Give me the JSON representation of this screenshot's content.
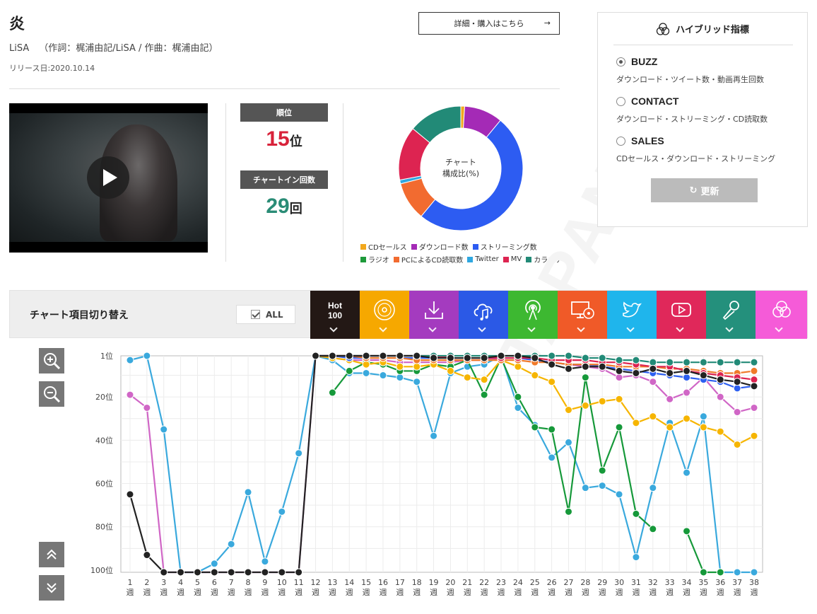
{
  "song": {
    "title": "炎",
    "artist": "LiSA",
    "credits": "（作詞：梶浦由記/LiSA / 作曲：梶浦由記）",
    "release": "リリース日:2020.10.14",
    "detail_button": "詳細・購入はこちら",
    "detail_arrow": "→"
  },
  "stats": {
    "rank_label": "順位",
    "rank_value": "15",
    "rank_unit": "位",
    "chartin_label": "チャートイン回数",
    "chartin_value": "29",
    "chartin_unit": "回"
  },
  "composition": {
    "center_line1": "チャート",
    "center_line2": "構成比(%)",
    "slices": [
      {
        "name": "CDセールス",
        "color": "#f2a81d",
        "percent": 1
      },
      {
        "name": "ダウンロード数",
        "color": "#a42ab6",
        "percent": 10
      },
      {
        "name": "ストリーミング数",
        "color": "#2d5cf2",
        "percent": 50
      },
      {
        "name": "ラジオ",
        "color": "#1e9a3a",
        "percent": 0
      },
      {
        "name": "PCによるCD読取数",
        "color": "#f26b30",
        "percent": 10
      },
      {
        "name": "Twitter",
        "color": "#2fa7e0",
        "percent": 1
      },
      {
        "name": "MV",
        "color": "#dd2451",
        "percent": 14
      },
      {
        "name": "カラオケ",
        "color": "#228a77",
        "percent": 14
      }
    ]
  },
  "hybrid": {
    "title": "ハイブリッド指標",
    "options": [
      {
        "label": "BUZZ",
        "desc": "ダウンロード・ツイート数・動画再生回数",
        "selected": true
      },
      {
        "label": "CONTACT",
        "desc": "ダウンロード・ストリーミング・CD読取数",
        "selected": false
      },
      {
        "label": "SALES",
        "desc": "CDセールス・ダウンロード・ストリーミング",
        "selected": false
      }
    ],
    "refresh_label": "更新",
    "refresh_icon": "↻"
  },
  "toolbar": {
    "title": "チャート項目切り替え",
    "all_label": "ALL",
    "tabs": [
      {
        "name": "hot100",
        "line1": "Hot",
        "line2": "100",
        "color": "#231815"
      },
      {
        "name": "cd-sales",
        "icon": "disc-icon",
        "color": "#f6a800"
      },
      {
        "name": "download",
        "icon": "download-icon",
        "color": "#a43bbf"
      },
      {
        "name": "streaming",
        "icon": "cloud-music-icon",
        "color": "#2b59e6"
      },
      {
        "name": "radio",
        "icon": "radio-icon",
        "color": "#3db831"
      },
      {
        "name": "pc-cd-read",
        "icon": "pc-disc-icon",
        "color": "#f05a28"
      },
      {
        "name": "twitter",
        "icon": "twitter-icon",
        "color": "#1fb5ec"
      },
      {
        "name": "mv",
        "icon": "play-icon",
        "color": "#e0285a"
      },
      {
        "name": "karaoke",
        "icon": "microphone-icon",
        "color": "#24907c"
      },
      {
        "name": "hybrid",
        "icon": "hybrid-icon",
        "color": "#f55bd8"
      }
    ]
  },
  "chart_data": {
    "type": "line",
    "y_ticks": [
      "1位",
      "20位",
      "40位",
      "60位",
      "80位",
      "100位"
    ],
    "y_tick_values": [
      1,
      20,
      40,
      60,
      80,
      100
    ],
    "ylim": [
      1,
      101
    ],
    "y_inverted": true,
    "x_labels": [
      "1",
      "2",
      "3",
      "4",
      "5",
      "6",
      "7",
      "8",
      "9",
      "10",
      "11",
      "12",
      "13",
      "14",
      "15",
      "16",
      "17",
      "18",
      "19",
      "20",
      "21",
      "22",
      "23",
      "24",
      "25",
      "26",
      "27",
      "28",
      "29",
      "30",
      "31",
      "32",
      "33",
      "34",
      "35",
      "36",
      "37",
      "38"
    ],
    "x_unit": "週",
    "series": [
      {
        "name": "Twitter",
        "color": "#3aa9dd",
        "values": [
          3,
          1,
          35,
          101,
          101,
          97,
          88,
          64,
          96,
          73,
          46,
          1,
          3,
          9,
          9,
          10,
          11,
          13,
          38,
          9,
          6,
          5,
          1,
          25,
          33,
          48,
          41,
          62,
          61,
          65,
          94,
          62,
          32,
          55,
          29,
          101,
          101,
          101
        ]
      },
      {
        "name": "ダウンロード数",
        "color": "#d066c6",
        "values": [
          19,
          25,
          101,
          101,
          101,
          101,
          101,
          101,
          101,
          101,
          101,
          1,
          2,
          3,
          3,
          3,
          4,
          4,
          4,
          4,
          3,
          3,
          2,
          2,
          3,
          4,
          5,
          6,
          7,
          11,
          10,
          13,
          21,
          18,
          11,
          20,
          27,
          25
        ]
      },
      {
        "name": "ラジオ",
        "color": "#16993a",
        "values": [
          null,
          null,
          null,
          null,
          null,
          null,
          null,
          null,
          null,
          null,
          null,
          null,
          18,
          8,
          4,
          5,
          8,
          8,
          5,
          6,
          3,
          19,
          2,
          20,
          34,
          35,
          73,
          11,
          54,
          34,
          74,
          81,
          null,
          82,
          101,
          101,
          null,
          null
        ]
      },
      {
        "name": "CDセールス",
        "color": "#f6b500",
        "values": [
          null,
          null,
          null,
          null,
          null,
          null,
          null,
          null,
          null,
          null,
          null,
          1,
          2,
          3,
          5,
          4,
          6,
          6,
          5,
          8,
          11,
          12,
          3,
          6,
          10,
          13,
          26,
          24,
          22,
          21,
          32,
          29,
          34,
          30,
          34,
          36,
          42,
          38
        ]
      },
      {
        "name": "ストリーミング数",
        "color": "#2d5ff0",
        "values": [
          null,
          null,
          null,
          null,
          null,
          null,
          null,
          null,
          null,
          null,
          null,
          1,
          1,
          2,
          2,
          2,
          2,
          2,
          2,
          2,
          2,
          2,
          2,
          2,
          3,
          4,
          5,
          5,
          6,
          7,
          8,
          9,
          10,
          11,
          12,
          13,
          16,
          15
        ]
      },
      {
        "name": "PCによるCD読取数",
        "color": "#f07a2a",
        "values": [
          null,
          null,
          null,
          null,
          null,
          null,
          null,
          null,
          null,
          null,
          null,
          1,
          1,
          1,
          2,
          2,
          2,
          3,
          3,
          3,
          3,
          3,
          3,
          3,
          4,
          4,
          5,
          5,
          5,
          6,
          6,
          6,
          7,
          7,
          8,
          9,
          9,
          8
        ]
      },
      {
        "name": "MV",
        "color": "#dd2451",
        "values": [
          null,
          null,
          null,
          null,
          null,
          null,
          null,
          null,
          null,
          null,
          null,
          1,
          1,
          1,
          1,
          1,
          1,
          1,
          1,
          2,
          2,
          2,
          2,
          2,
          2,
          3,
          3,
          3,
          4,
          4,
          5,
          6,
          6,
          8,
          9,
          10,
          11,
          12
        ]
      },
      {
        "name": "カラオケ",
        "color": "#228a77",
        "values": [
          null,
          null,
          null,
          null,
          null,
          null,
          null,
          null,
          null,
          null,
          null,
          1,
          1,
          1,
          1,
          1,
          1,
          1,
          1,
          1,
          1,
          1,
          1,
          1,
          1,
          1,
          1,
          2,
          2,
          3,
          3,
          4,
          4,
          4,
          4,
          4,
          4,
          4
        ]
      },
      {
        "name": "Hot 100",
        "color": "#222222",
        "values": [
          65,
          93,
          101,
          101,
          101,
          101,
          101,
          101,
          101,
          101,
          101,
          1,
          1,
          1,
          1,
          1,
          1,
          1,
          2,
          2,
          2,
          2,
          1,
          1,
          2,
          5,
          7,
          6,
          6,
          8,
          9,
          7,
          9,
          8,
          10,
          12,
          13,
          15
        ]
      }
    ]
  }
}
